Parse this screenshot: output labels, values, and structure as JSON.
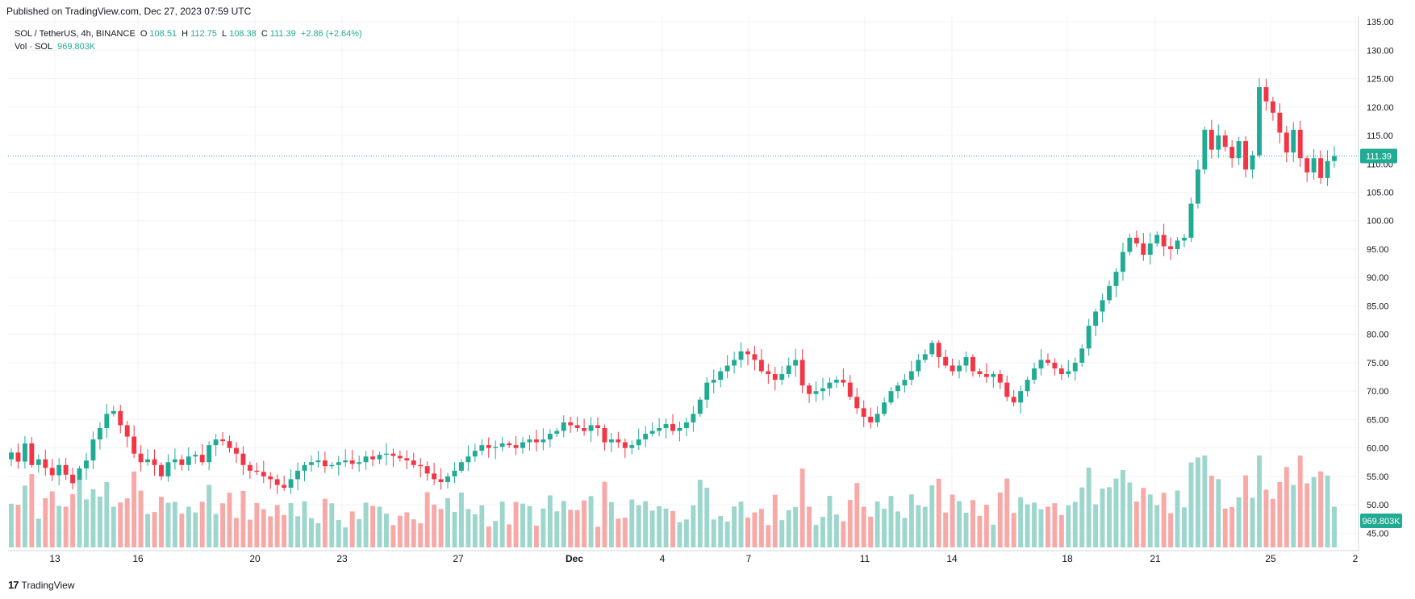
{
  "header": {
    "published": "Published on TradingView.com, Dec 27, 2023 07:59 UTC"
  },
  "legend": {
    "symbol": "SOL / TetherUS, 4h, BINANCE",
    "open_label": "O",
    "open": "108.51",
    "high_label": "H",
    "high": "112.75",
    "low_label": "L",
    "low": "108.38",
    "close_label": "C",
    "close": "111.39",
    "change": "+2.86 (+2.64%)",
    "vol_label": "Vol · SOL",
    "vol_value": "969.803K"
  },
  "footer": {
    "brand": "TradingView",
    "logo_icon": "tradingview-logo-icon"
  },
  "colors": {
    "up": "#22ab94",
    "down": "#f23645",
    "vol_up": "#9dd6cc",
    "vol_down": "#f7a9a7",
    "grid": "#f0f3fa",
    "axis_text": "#131722"
  },
  "chart_data": {
    "type": "candlestick",
    "symbol": "SOL / TetherUS",
    "interval": "4h",
    "ylim": [
      42.5,
      136
    ],
    "y_ticks": [
      "135.00",
      "130.00",
      "125.00",
      "120.00",
      "115.00",
      "110.00",
      "105.00",
      "100.00",
      "95.00",
      "90.00",
      "85.00",
      "80.00",
      "75.00",
      "70.00",
      "65.00",
      "60.00",
      "55.00",
      "50.00",
      "45.00"
    ],
    "x_ticks": [
      "13",
      "16",
      "20",
      "23",
      "27",
      "Dec",
      "4",
      "7",
      "11",
      "14",
      "18",
      "21",
      "25",
      "2"
    ],
    "last_price": 111.39,
    "last_price_label": "111.39",
    "last_volume_label": "969.803K",
    "close_series": [
      59.2,
      57.6,
      60.8,
      57.0,
      58.0,
      56.5,
      55.2,
      57.0,
      55.3,
      53.8,
      56.4,
      57.8,
      61.5,
      63.5,
      66.0,
      66.5,
      64.0,
      62.0,
      59.0,
      57.5,
      58.0,
      57.0,
      55.0,
      57.5,
      58.0,
      57.0,
      58.5,
      58.8,
      57.5,
      60.5,
      61.5,
      61.2,
      60.0,
      59.0,
      57.0,
      56.0,
      55.8,
      55.0,
      54.5,
      53.5,
      53.0,
      54.5,
      56.0,
      57.0,
      57.5,
      57.8,
      56.8,
      57.0,
      57.5,
      57.8,
      57.2,
      57.5,
      58.5,
      58.0,
      58.8,
      59.0,
      58.6,
      58.2,
      57.8,
      57.0,
      56.8,
      55.5,
      54.5,
      54.0,
      55.0,
      56.0,
      57.5,
      58.5,
      59.5,
      60.5,
      60.0,
      60.2,
      60.8,
      60.5,
      60.0,
      61.0,
      61.5,
      61.0,
      61.5,
      62.5,
      63.0,
      64.5,
      64.0,
      63.5,
      63.0,
      64.0,
      63.5,
      61.0,
      61.5,
      61.0,
      60.0,
      60.5,
      61.5,
      62.5,
      63.0,
      63.5,
      64.2,
      63.0,
      63.5,
      64.5,
      66.0,
      68.5,
      71.5,
      72.0,
      73.5,
      74.5,
      75.5,
      77.0,
      76.5,
      75.5,
      73.5,
      73.0,
      72.0,
      73.0,
      74.5,
      75.5,
      71.0,
      69.5,
      70.0,
      70.5,
      71.5,
      72.0,
      71.5,
      69.0,
      67.0,
      65.5,
      64.5,
      66.0,
      68.0,
      70.0,
      71.0,
      72.0,
      73.5,
      75.5,
      76.5,
      78.5,
      76.0,
      74.5,
      73.5,
      74.5,
      76.0,
      73.5,
      73.0,
      72.5,
      73.0,
      71.5,
      69.0,
      68.0,
      70.0,
      72.0,
      74.0,
      75.5,
      75.0,
      74.0,
      73.0,
      73.5,
      75.0,
      77.5,
      81.5,
      84.0,
      86.0,
      88.5,
      91.0,
      94.5,
      97.0,
      96.0,
      94.0,
      96.0,
      97.5,
      95.5,
      95.0,
      96.5,
      97.0,
      103.0,
      109.0,
      116.0,
      112.5,
      115.0,
      113.0,
      111.0,
      114.0,
      109.0,
      111.5,
      123.5,
      121.0,
      119.0,
      115.5,
      112.0,
      116.0,
      111.0,
      108.5,
      111.0,
      107.5,
      110.5,
      111.39
    ],
    "volume_ylim": [
      0,
      1300
    ]
  }
}
